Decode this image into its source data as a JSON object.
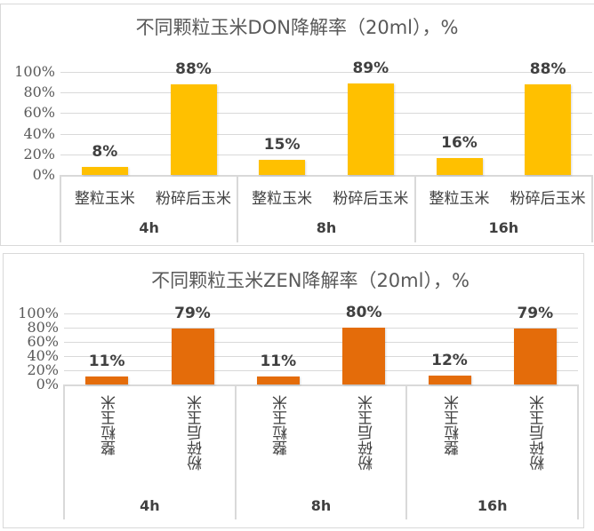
{
  "chart_data": [
    {
      "type": "bar",
      "title": "不同颗粒玉米DON降解率（20ml），%",
      "xlabel": "",
      "ylabel": "",
      "ylim": [
        0,
        1
      ],
      "yticks": [
        "0%",
        "20%",
        "40%",
        "60%",
        "80%",
        "100%"
      ],
      "grid": true,
      "legend": null,
      "color": "#FFC000",
      "groups": [
        "4h",
        "8h",
        "16h"
      ],
      "categories": [
        "整粒玉米",
        "粉碎后玉米",
        "整粒玉米",
        "粉碎后玉米",
        "整粒玉米",
        "粉碎后玉米"
      ],
      "values": [
        0.08,
        0.88,
        0.15,
        0.89,
        0.16,
        0.88
      ],
      "labels": [
        "8%",
        "88%",
        "15%",
        "89%",
        "16%",
        "88%"
      ]
    },
    {
      "type": "bar",
      "title": "不同颗粒玉米ZEN降解率（20ml），%",
      "xlabel": "",
      "ylabel": "",
      "ylim": [
        0,
        1
      ],
      "yticks": [
        "0%",
        "20%",
        "40%",
        "60%",
        "80%",
        "100%"
      ],
      "grid": true,
      "legend": null,
      "color": "#E46C0A",
      "groups": [
        "4h",
        "8h",
        "16h"
      ],
      "categories": [
        "整粒玉米",
        "粉碎后玉米",
        "整粒玉米",
        "粉碎后玉米",
        "整粒玉米",
        "粉碎后玉米"
      ],
      "values": [
        0.11,
        0.79,
        0.11,
        0.8,
        0.12,
        0.79
      ],
      "labels": [
        "11%",
        "79%",
        "11%",
        "80%",
        "12%",
        "79%"
      ]
    }
  ]
}
